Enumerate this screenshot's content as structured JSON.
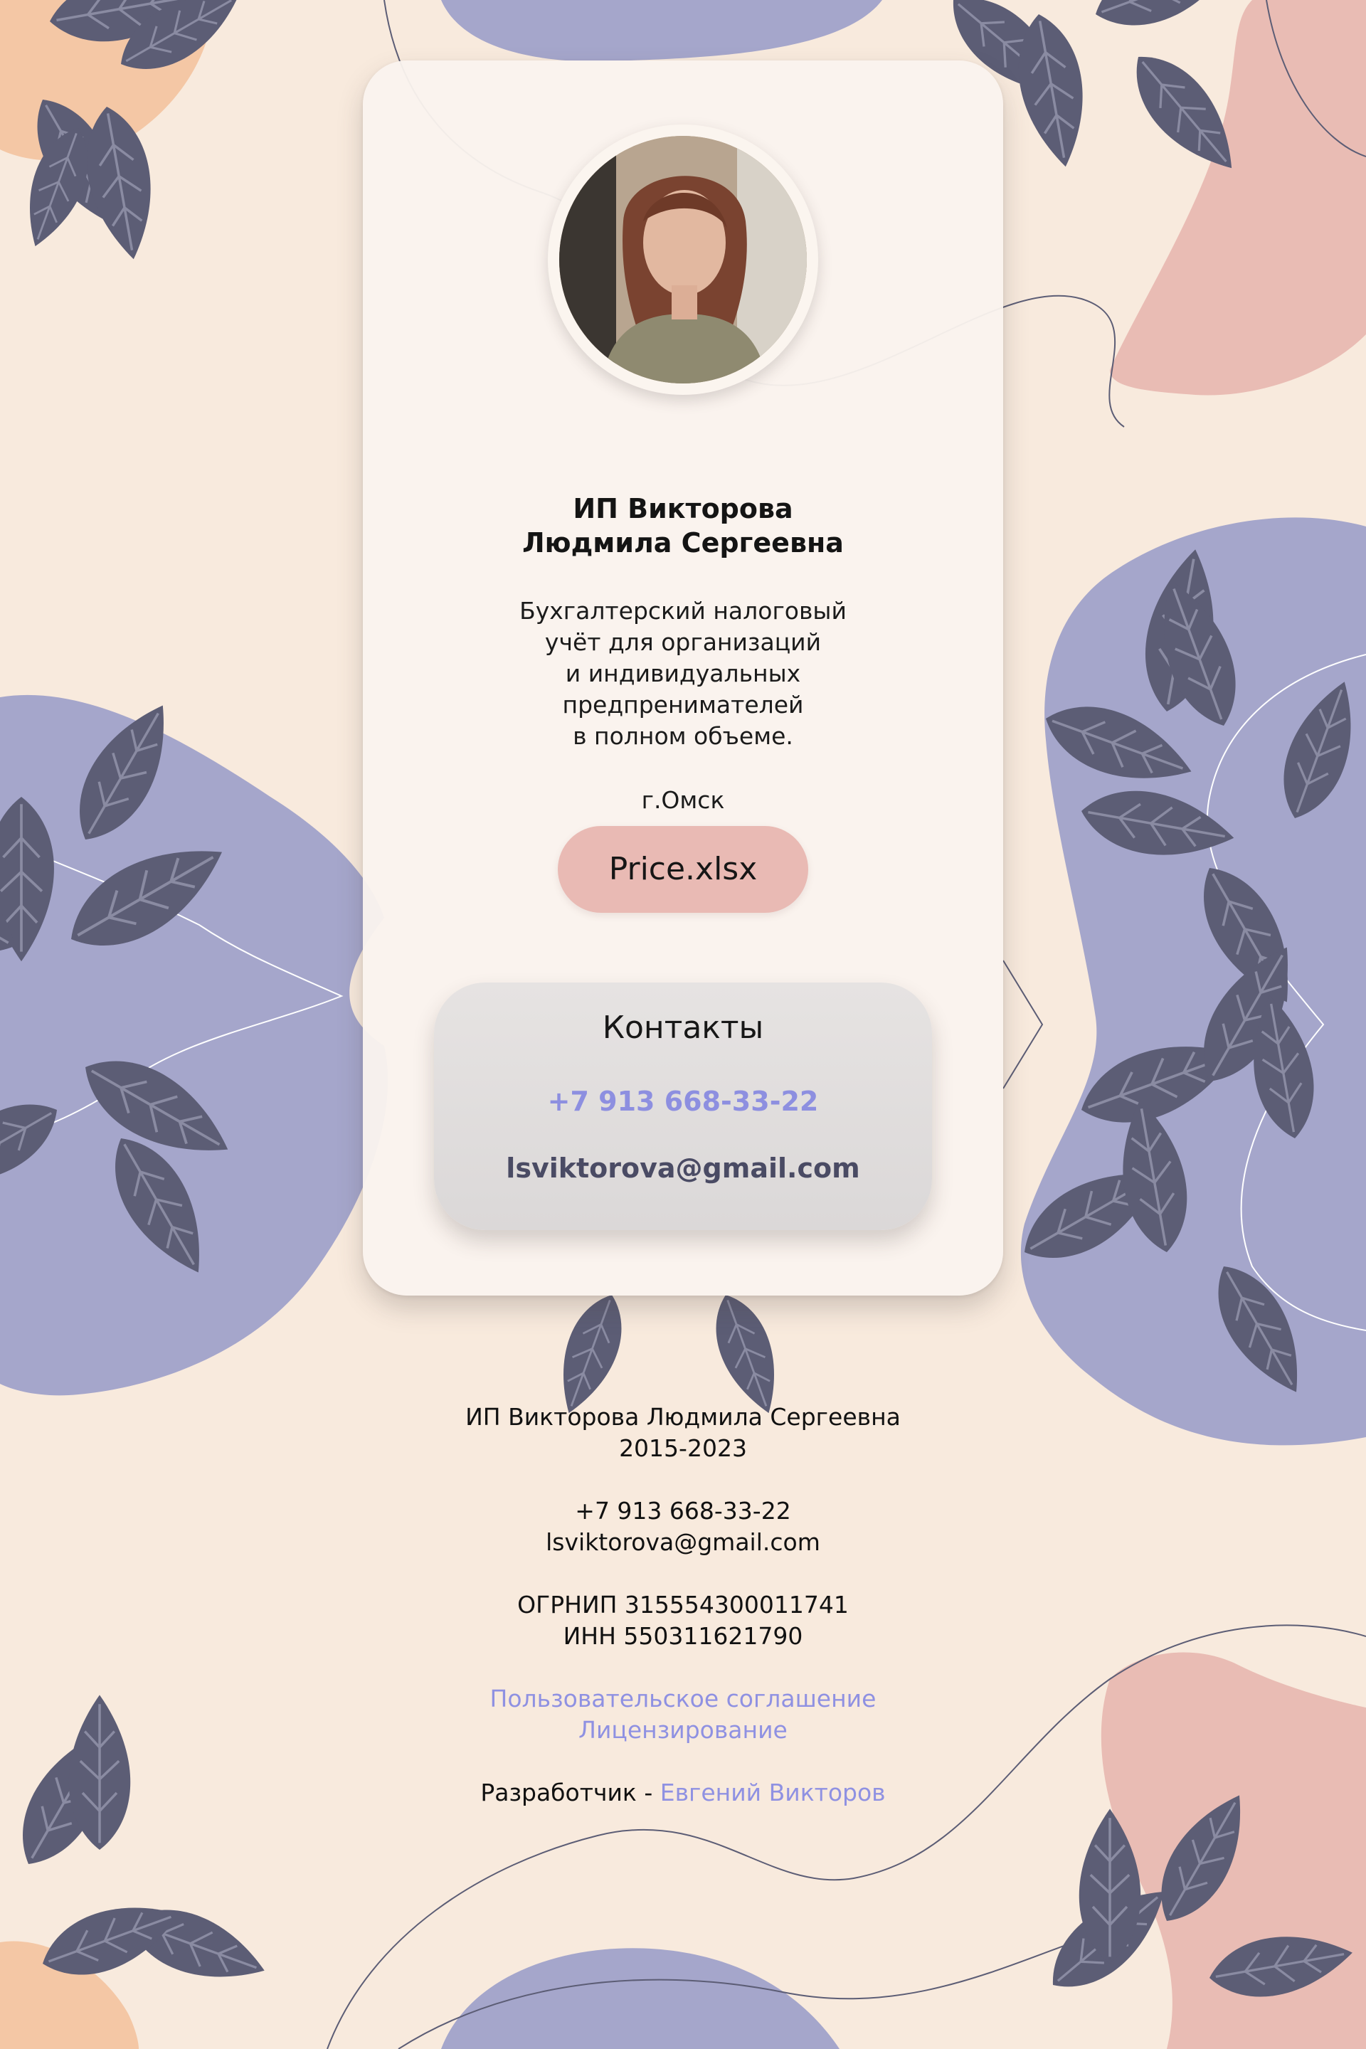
{
  "card": {
    "avatar_alt": "Фото",
    "name_line1": "ИП Викторова",
    "name_line2": "Людмила Сергеевна",
    "description": [
      "Бухгалтерский налоговый",
      "учёт для организаций",
      "и индивидуальных",
      "предпренимателей",
      "в полном объеме."
    ],
    "city": "г.Омск",
    "price_button": "Price.xlsx",
    "contacts": {
      "title": "Контакты",
      "phone": "+7 913 668-33-22",
      "email": "lsviktorova@gmail.com"
    }
  },
  "footer": {
    "company": "ИП Викторова Людмила Сергеевна",
    "years": "2015-2023",
    "phone": "+7 913 668-33-22",
    "email": "lsviktorova@gmail.com",
    "ogrnip": "ОГРНИП 315554300011741",
    "inn": "ИНН 550311621790",
    "user_agreement": "Пользовательское соглашение",
    "licensing": "Лицензирование",
    "developer_label": "Разработчик - ",
    "developer_name": "Евгений Викторов"
  },
  "colors": {
    "background": "#f8eadd",
    "lavender": "#a3a4ca",
    "pink": "#e8bcb5",
    "peach": "#f5c9a7",
    "leaf": "#5c5d75",
    "button": "#e9bab4",
    "link": "#8f91e2"
  },
  "icons": [
    "leaf-decoration",
    "avatar-photo"
  ]
}
